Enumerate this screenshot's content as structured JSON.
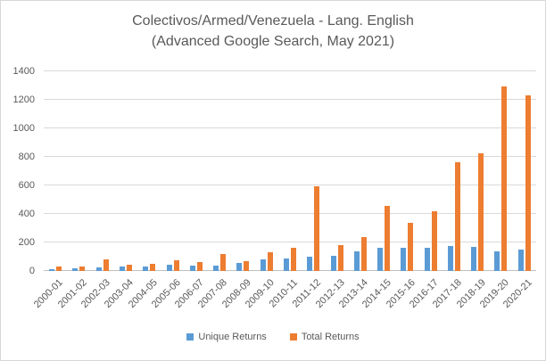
{
  "title": {
    "line1": "Colectivos/Armed/Venezuela - Lang. English",
    "line2": "(Advanced Google Search, May 2021)"
  },
  "colors": {
    "unique_returns": "#5B9BD5",
    "total_returns": "#ED7D31",
    "text": "#595959",
    "gridline": "#D9D9D9"
  },
  "chart_data": {
    "type": "bar",
    "title": "Colectivos/Armed/Venezuela - Lang. English (Advanced Google Search, May 2021)",
    "categories": [
      "2000-01",
      "2001-02",
      "2002-03",
      "2003-04",
      "2004-05",
      "2005-06",
      "2006-07",
      "2007-08",
      "2008-09",
      "2009-10",
      "2010-11",
      "2011-12",
      "2012-13",
      "2013-14",
      "2014-15",
      "2015-16",
      "2016-17",
      "2017-18",
      "2018-19",
      "2019-20",
      "2020-21"
    ],
    "series": [
      {
        "name": "Unique Returns",
        "color": "#5B9BD5",
        "values": [
          13,
          20,
          27,
          33,
          32,
          43,
          38,
          40,
          57,
          80,
          85,
          100,
          107,
          135,
          163,
          162,
          163,
          174,
          167,
          140,
          150
        ]
      },
      {
        "name": "Total Returns",
        "color": "#ED7D31",
        "values": [
          30,
          33,
          83,
          46,
          48,
          72,
          60,
          120,
          71,
          133,
          160,
          592,
          180,
          240,
          455,
          335,
          420,
          765,
          825,
          1295,
          1230
        ]
      }
    ],
    "xlabel": "",
    "ylabel": "",
    "ylim": [
      0,
      1400
    ],
    "yticks": [
      0,
      200,
      400,
      600,
      800,
      1000,
      1200,
      1400
    ],
    "grid": true,
    "legend_position": "bottom"
  }
}
